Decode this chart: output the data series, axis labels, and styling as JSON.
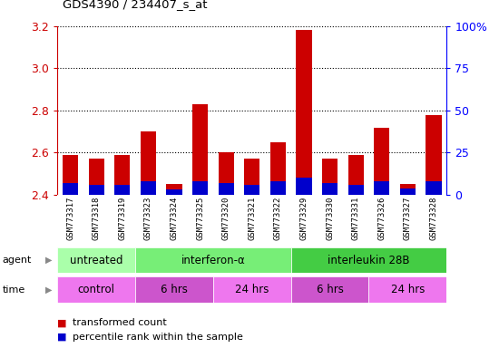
{
  "title": "GDS4390 / 234407_s_at",
  "samples": [
    "GSM773317",
    "GSM773318",
    "GSM773319",
    "GSM773323",
    "GSM773324",
    "GSM773325",
    "GSM773320",
    "GSM773321",
    "GSM773322",
    "GSM773329",
    "GSM773330",
    "GSM773331",
    "GSM773326",
    "GSM773327",
    "GSM773328"
  ],
  "transformed_count": [
    2.59,
    2.57,
    2.59,
    2.7,
    2.45,
    2.83,
    2.6,
    2.57,
    2.65,
    3.18,
    2.57,
    2.59,
    2.72,
    2.45,
    2.78
  ],
  "percentile_rank": [
    7,
    6,
    6,
    8,
    3,
    8,
    7,
    6,
    8,
    10,
    7,
    6,
    8,
    4,
    8
  ],
  "ymin": 2.4,
  "ymax": 3.2,
  "yticks": [
    2.4,
    2.6,
    2.8,
    3.0,
    3.2
  ],
  "right_yticks": [
    0,
    25,
    50,
    75,
    100
  ],
  "bar_width": 0.6,
  "red_color": "#cc0000",
  "blue_color": "#0000cc",
  "agent_groups": [
    {
      "label": "untreated",
      "start": 0,
      "end": 3,
      "color": "#aaffaa"
    },
    {
      "label": "interferon-α",
      "start": 3,
      "end": 9,
      "color": "#77ee77"
    },
    {
      "label": "interleukin 28B",
      "start": 9,
      "end": 15,
      "color": "#44cc44"
    }
  ],
  "time_groups": [
    {
      "label": "control",
      "start": 0,
      "end": 3,
      "color": "#ee77ee"
    },
    {
      "label": "6 hrs",
      "start": 3,
      "end": 6,
      "color": "#cc55cc"
    },
    {
      "label": "24 hrs",
      "start": 6,
      "end": 9,
      "color": "#ee77ee"
    },
    {
      "label": "6 hrs",
      "start": 9,
      "end": 12,
      "color": "#cc55cc"
    },
    {
      "label": "24 hrs",
      "start": 12,
      "end": 15,
      "color": "#ee77ee"
    }
  ],
  "legend_red": "transformed count",
  "legend_blue": "percentile rank within the sample",
  "chart_bg": "#ffffff",
  "sample_bg": "#d0d0d0"
}
